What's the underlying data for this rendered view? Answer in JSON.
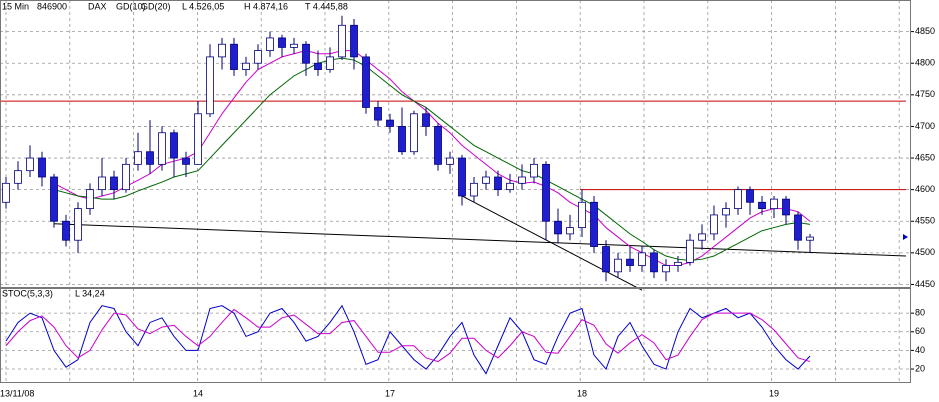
{
  "chart_data": [
    {
      "type": "candlestick",
      "header": [
        "15 Min",
        "846900",
        "DAX"
      ],
      "stats": [
        "L 4.526,05",
        "H 4.874,16",
        "T 4.445,88"
      ],
      "categories": [
        "13/11/08",
        null,
        null,
        null,
        null,
        null,
        null,
        null,
        null,
        null,
        null,
        null,
        null,
        null,
        null,
        null,
        "14",
        null,
        null,
        null,
        null,
        null,
        null,
        null,
        null,
        null,
        null,
        null,
        null,
        null,
        null,
        null,
        "17",
        null,
        null,
        null,
        null,
        null,
        null,
        null,
        null,
        null,
        null,
        null,
        null,
        null,
        null,
        null,
        "18",
        null,
        null,
        null,
        null,
        null,
        null,
        null,
        null,
        null,
        null,
        null,
        null,
        null,
        null,
        null,
        "19",
        null,
        null,
        null
      ],
      "open": [
        4580,
        4610,
        4630,
        4650,
        4620,
        4550,
        4520,
        4570,
        4600,
        4620,
        4600,
        4640,
        4660,
        4640,
        4690,
        4650,
        4640,
        4720,
        4810,
        4830,
        4790,
        4800,
        4820,
        4840,
        4825,
        4830,
        4800,
        4790,
        4810,
        4860,
        4810,
        4730,
        4710,
        4700,
        4660,
        4720,
        4700,
        4640,
        4650,
        4590,
        4610,
        4620,
        4600,
        4610,
        4620,
        4640,
        4550,
        4530,
        4540,
        4580,
        4510,
        4470,
        4490,
        4480,
        4500,
        4470,
        4480,
        4485,
        4520,
        4530,
        4560,
        4570,
        4600,
        4580,
        4570,
        4585,
        4560,
        4520
      ],
      "high": [
        4620,
        4645,
        4670,
        4660,
        4625,
        4560,
        4580,
        4610,
        4650,
        4630,
        4650,
        4690,
        4710,
        4700,
        4695,
        4660,
        4740,
        4830,
        4840,
        4840,
        4810,
        4830,
        4850,
        4845,
        4840,
        4835,
        4820,
        4825,
        4875,
        4870,
        4815,
        4740,
        4720,
        4730,
        4725,
        4730,
        4705,
        4660,
        4655,
        4620,
        4630,
        4630,
        4625,
        4640,
        4650,
        4645,
        4570,
        4560,
        4600,
        4590,
        4520,
        4500,
        4510,
        4510,
        4505,
        4490,
        4495,
        4530,
        4545,
        4575,
        4580,
        4605,
        4605,
        4590,
        4590,
        4590,
        4565,
        4530
      ],
      "low": [
        4570,
        4600,
        4620,
        4605,
        4540,
        4510,
        4500,
        4560,
        4590,
        4585,
        4595,
        4630,
        4625,
        4630,
        4620,
        4620,
        4640,
        4715,
        4790,
        4780,
        4780,
        4790,
        4810,
        4810,
        4815,
        4780,
        4780,
        4785,
        4805,
        4790,
        4720,
        4700,
        4690,
        4655,
        4655,
        4685,
        4630,
        4625,
        4575,
        4580,
        4600,
        4590,
        4595,
        4600,
        4610,
        4520,
        4515,
        4520,
        4525,
        4500,
        4455,
        4460,
        4470,
        4470,
        4460,
        4455,
        4470,
        4480,
        4505,
        4520,
        4540,
        4560,
        4560,
        4560,
        4555,
        4545,
        4505,
        4500
      ],
      "close": [
        4610,
        4630,
        4650,
        4620,
        4550,
        4520,
        4570,
        4600,
        4620,
        4600,
        4640,
        4660,
        4640,
        4690,
        4650,
        4640,
        4720,
        4810,
        4830,
        4790,
        4800,
        4820,
        4840,
        4825,
        4830,
        4800,
        4790,
        4810,
        4860,
        4810,
        4730,
        4710,
        4700,
        4660,
        4720,
        4700,
        4640,
        4650,
        4590,
        4610,
        4620,
        4600,
        4610,
        4620,
        4640,
        4550,
        4530,
        4540,
        4580,
        4510,
        4470,
        4490,
        4480,
        4500,
        4470,
        4480,
        4485,
        4520,
        4530,
        4560,
        4570,
        4600,
        4580,
        4570,
        4585,
        4560,
        4520,
        4525
      ],
      "up_color": "#ffffff",
      "down_color": "#1f1fd0",
      "outline_color": "#00007a",
      "series": [
        {
          "name": "GD(10)",
          "color": "#cc00cc",
          "values": [
            null,
            null,
            null,
            null,
            4610,
            4600,
            4590,
            4585,
            4590,
            4595,
            4605,
            4615,
            4625,
            4640,
            4645,
            4650,
            4660,
            4690,
            4720,
            4745,
            4770,
            4790,
            4800,
            4810,
            4815,
            4820,
            4815,
            4815,
            4820,
            4820,
            4805,
            4790,
            4775,
            4755,
            4740,
            4725,
            4705,
            4690,
            4670,
            4655,
            4640,
            4625,
            4615,
            4610,
            4612,
            4605,
            4595,
            4580,
            4570,
            4560,
            4540,
            4525,
            4510,
            4500,
            4490,
            4480,
            4480,
            4485,
            4495,
            4510,
            4525,
            4540,
            4555,
            4565,
            4570,
            4570,
            4565,
            4550
          ]
        },
        {
          "name": "GD(20)",
          "color": "#006600",
          "values": [
            null,
            null,
            null,
            null,
            4600,
            4595,
            4590,
            4588,
            4585,
            4585,
            4590,
            4598,
            4605,
            4612,
            4620,
            4625,
            4630,
            4650,
            4670,
            4690,
            4710,
            4730,
            4750,
            4765,
            4780,
            4790,
            4800,
            4805,
            4808,
            4805,
            4795,
            4780,
            4765,
            4750,
            4740,
            4730,
            4715,
            4700,
            4685,
            4670,
            4660,
            4650,
            4640,
            4630,
            4625,
            4615,
            4605,
            4595,
            4585,
            4575,
            4560,
            4545,
            4530,
            4518,
            4505,
            4495,
            4490,
            4488,
            4490,
            4495,
            4505,
            4515,
            4525,
            4535,
            4540,
            4545,
            4548,
            4545
          ]
        }
      ],
      "levels": [
        {
          "value": 4740,
          "color": "#cc0000",
          "from": 0
        },
        {
          "value": 4600,
          "color": "#cc0000",
          "from": 48
        }
      ],
      "trendlines": [
        {
          "x": [
            4,
            75
          ],
          "y": [
            4546,
            4495
          ],
          "color": "#000000"
        },
        {
          "x": [
            38,
            53
          ],
          "y": [
            4590,
            4441
          ],
          "color": "#000000"
        }
      ],
      "ylim": [
        4446,
        4900
      ],
      "yticks": [
        4450,
        4500,
        4550,
        4600,
        4650,
        4700,
        4750,
        4800,
        4850
      ],
      "grid": true
    },
    {
      "type": "line",
      "title": "STOC(5,3,3)",
      "stats": [
        "L 34,24"
      ],
      "series": [
        {
          "color": "#0000cc",
          "values": [
            50,
            70,
            80,
            75,
            40,
            22,
            30,
            70,
            88,
            85,
            60,
            45,
            70,
            75,
            55,
            40,
            40,
            85,
            88,
            80,
            55,
            60,
            80,
            85,
            70,
            50,
            55,
            70,
            88,
            60,
            25,
            30,
            60,
            45,
            30,
            20,
            35,
            55,
            70,
            35,
            15,
            45,
            75,
            60,
            30,
            25,
            55,
            80,
            85,
            35,
            20,
            55,
            70,
            45,
            25,
            20,
            60,
            85,
            75,
            80,
            85,
            75,
            80,
            65,
            45,
            30,
            20,
            34
          ]
        },
        {
          "color": "#cc00cc",
          "values": [
            45,
            60,
            72,
            77,
            65,
            45,
            32,
            40,
            62,
            80,
            78,
            63,
            58,
            65,
            67,
            55,
            45,
            55,
            70,
            84,
            75,
            65,
            65,
            75,
            78,
            68,
            58,
            58,
            70,
            72,
            55,
            38,
            38,
            45,
            45,
            32,
            28,
            37,
            53,
            53,
            40,
            32,
            45,
            60,
            55,
            38,
            37,
            55,
            73,
            67,
            47,
            37,
            48,
            57,
            48,
            30,
            35,
            55,
            73,
            80,
            80,
            80,
            80,
            73,
            62,
            47,
            32,
            28
          ]
        }
      ],
      "ylim": [
        5,
        107
      ],
      "yticks": [
        20,
        40,
        60,
        80
      ],
      "grid": true
    }
  ]
}
